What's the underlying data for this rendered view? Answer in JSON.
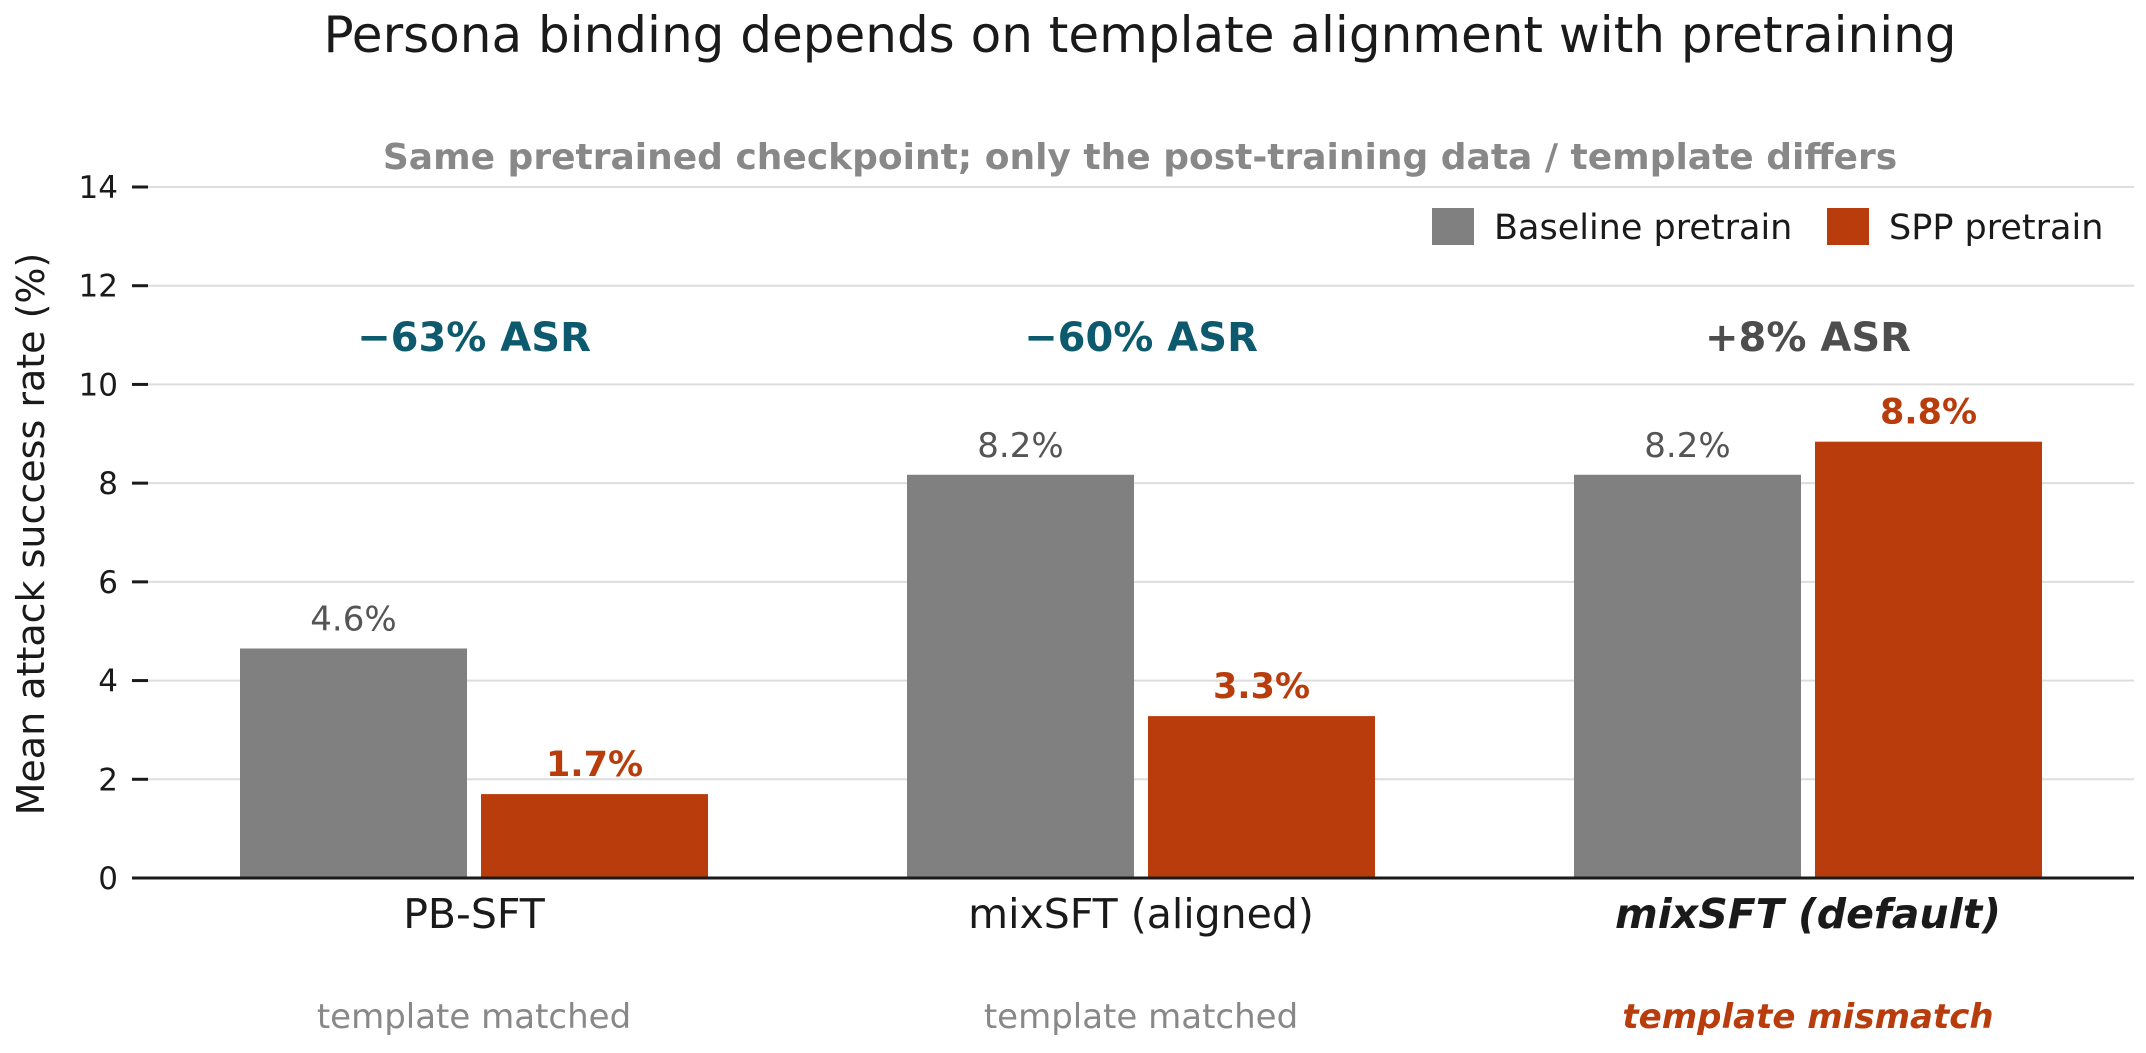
{
  "chart_data": {
    "type": "bar",
    "title": "Persona binding depends on template alignment with pretraining",
    "subtitle": "Same pretrained checkpoint; only the post-training data / template differs",
    "xlabel": "",
    "ylabel": "Mean attack success rate (%)",
    "ylim": [
      0,
      14
    ],
    "yticks": [
      0,
      2,
      4,
      6,
      8,
      10,
      12,
      14
    ],
    "grid": true,
    "legend_position": "top-right",
    "categories": [
      "PB-SFT",
      "mixSFT (aligned)",
      "mixSFT (default)"
    ],
    "category_emphasis": [
      false,
      false,
      true
    ],
    "category_notes": [
      "template matched",
      "template matched",
      "template mismatch"
    ],
    "category_note_emphasis": [
      false,
      false,
      true
    ],
    "series": [
      {
        "name": "Baseline pretrain",
        "color": "#808080",
        "values": [
          4.65,
          8.17,
          8.17
        ],
        "labels": [
          "4.6%",
          "8.2%",
          "8.2%"
        ]
      },
      {
        "name": "SPP pretrain",
        "color": "#b83c0c",
        "values": [
          1.7,
          3.28,
          8.84
        ],
        "labels": [
          "1.7%",
          "3.3%",
          "8.8%"
        ]
      }
    ],
    "annotations": [
      {
        "text": "−63% ASR",
        "color": "#0d5a6e"
      },
      {
        "text": "−60% ASR",
        "color": "#0d5a6e"
      },
      {
        "text": "+8% ASR",
        "color": "#4d4d4d"
      }
    ]
  }
}
